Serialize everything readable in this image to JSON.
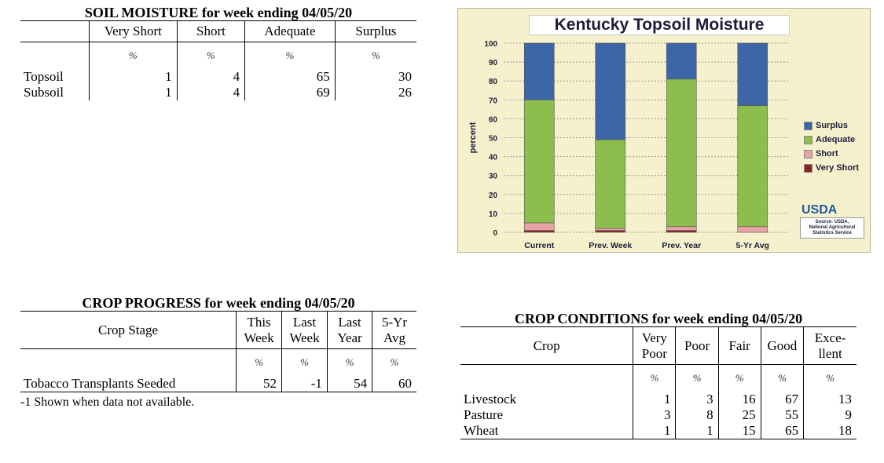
{
  "soil": {
    "title": "SOIL MOISTURE for week ending 04/05/20",
    "headers": [
      "Very Short",
      "Short",
      "Adequate",
      "Surplus"
    ],
    "unit": "%",
    "rows": [
      {
        "label": "Topsoil",
        "values": [
          "1",
          "4",
          "65",
          "30"
        ]
      },
      {
        "label": "Subsoil",
        "values": [
          "1",
          "4",
          "69",
          "26"
        ]
      }
    ]
  },
  "progress": {
    "title": "CROP PROGRESS for week ending 04/05/20",
    "stage_header": "Crop Stage",
    "headers": [
      [
        "This",
        "Week"
      ],
      [
        "Last",
        "Week"
      ],
      [
        "Last",
        "Year"
      ],
      [
        "5-Yr",
        "Avg"
      ]
    ],
    "unit": "%",
    "rows": [
      {
        "label": "Tobacco Transplants Seeded",
        "values": [
          "52",
          "-1",
          "54",
          "60"
        ]
      }
    ],
    "footnote": "-1 Shown when data not available."
  },
  "conditions": {
    "title": "CROP CONDITIONS for week ending 04/05/20",
    "crop_header": "Crop",
    "headers": [
      [
        "Very",
        "Poor"
      ],
      [
        "Poor",
        ""
      ],
      [
        "Fair",
        ""
      ],
      [
        "Good",
        ""
      ],
      [
        "Exce-",
        "llent"
      ]
    ],
    "unit": "%",
    "rows": [
      {
        "label": "Livestock",
        "values": [
          "1",
          "3",
          "16",
          "67",
          "13"
        ]
      },
      {
        "label": "Pasture",
        "values": [
          "3",
          "8",
          "25",
          "55",
          "9"
        ]
      },
      {
        "label": "Wheat",
        "values": [
          "1",
          "1",
          "15",
          "65",
          "18"
        ]
      }
    ]
  },
  "chart_data": {
    "type": "bar",
    "stacked": true,
    "title": "Kentucky Topsoil Moisture",
    "ylabel": "percent",
    "ylim": [
      0,
      100
    ],
    "yticks": [
      0,
      10,
      20,
      30,
      40,
      50,
      60,
      70,
      80,
      90,
      100
    ],
    "categories": [
      "Current",
      "Prev. Week",
      "Prev. Year",
      "5-Yr Avg"
    ],
    "series": [
      {
        "name": "Very Short",
        "color": "#8b2323",
        "values": [
          1,
          1,
          1,
          0
        ]
      },
      {
        "name": "Short",
        "color": "#e8a3a3",
        "values": [
          4,
          1,
          2,
          3
        ]
      },
      {
        "name": "Adequate",
        "color": "#8cbd4d",
        "values": [
          65,
          47,
          78,
          64
        ]
      },
      {
        "name": "Surplus",
        "color": "#3d66a8",
        "values": [
          30,
          51,
          19,
          33
        ]
      }
    ],
    "legend_order": [
      "Surplus",
      "Adequate",
      "Short",
      "Very Short"
    ],
    "grid": true,
    "legend_position": "right",
    "logo_text": "USDA",
    "source_lines": [
      "Source: USDA,",
      "National Agricultural",
      "Statistics Service"
    ]
  }
}
